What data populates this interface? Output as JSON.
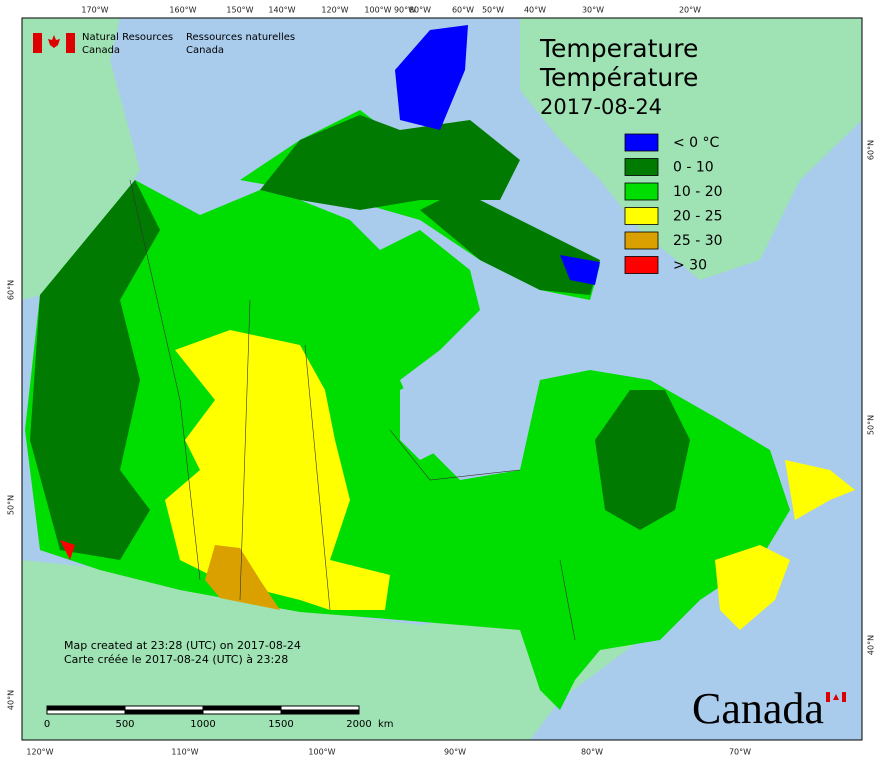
{
  "header": {
    "agency_en": "Natural Resources",
    "agency_en2": "Canada",
    "agency_fr": "Ressources naturelles",
    "agency_fr2": "Canada"
  },
  "title": {
    "line1": "Temperature",
    "line2": "Température",
    "date": "2017-08-24"
  },
  "legend": [
    {
      "label": "< 0 °C",
      "color": "#0000ff"
    },
    {
      "label": "0 - 10",
      "color": "#007a00"
    },
    {
      "label": "10 - 20",
      "color": "#00dd00"
    },
    {
      "label": "20 - 25",
      "color": "#ffff00"
    },
    {
      "label": "25 - 30",
      "color": "#d9a000"
    },
    {
      "label": "> 30",
      "color": "#ff0000"
    }
  ],
  "graticule": {
    "top": [
      "170°W",
      "160°W",
      "150°W",
      "140°W",
      "120°W",
      "100°W",
      "90°W",
      "80°W",
      "60°W",
      "50°W",
      "40°W",
      "30°W",
      "20°W"
    ],
    "bottom": [
      "120°W",
      "110°W",
      "100°W",
      "90°W",
      "80°W",
      "70°W"
    ],
    "left": [
      "60°N",
      "50°N",
      "40°N"
    ],
    "right": [
      "60°N",
      "50°N",
      "40°N"
    ]
  },
  "footer": {
    "created_en": "Map created at 23:28 (UTC) on 2017-08-24",
    "created_fr": "Carte créée le 2017-08-24 (UTC) à 23:28"
  },
  "scale_bar": {
    "labels": [
      "0",
      "500",
      "1000",
      "1500",
      "2000"
    ],
    "unit": "km"
  },
  "wordmark": "Canada"
}
